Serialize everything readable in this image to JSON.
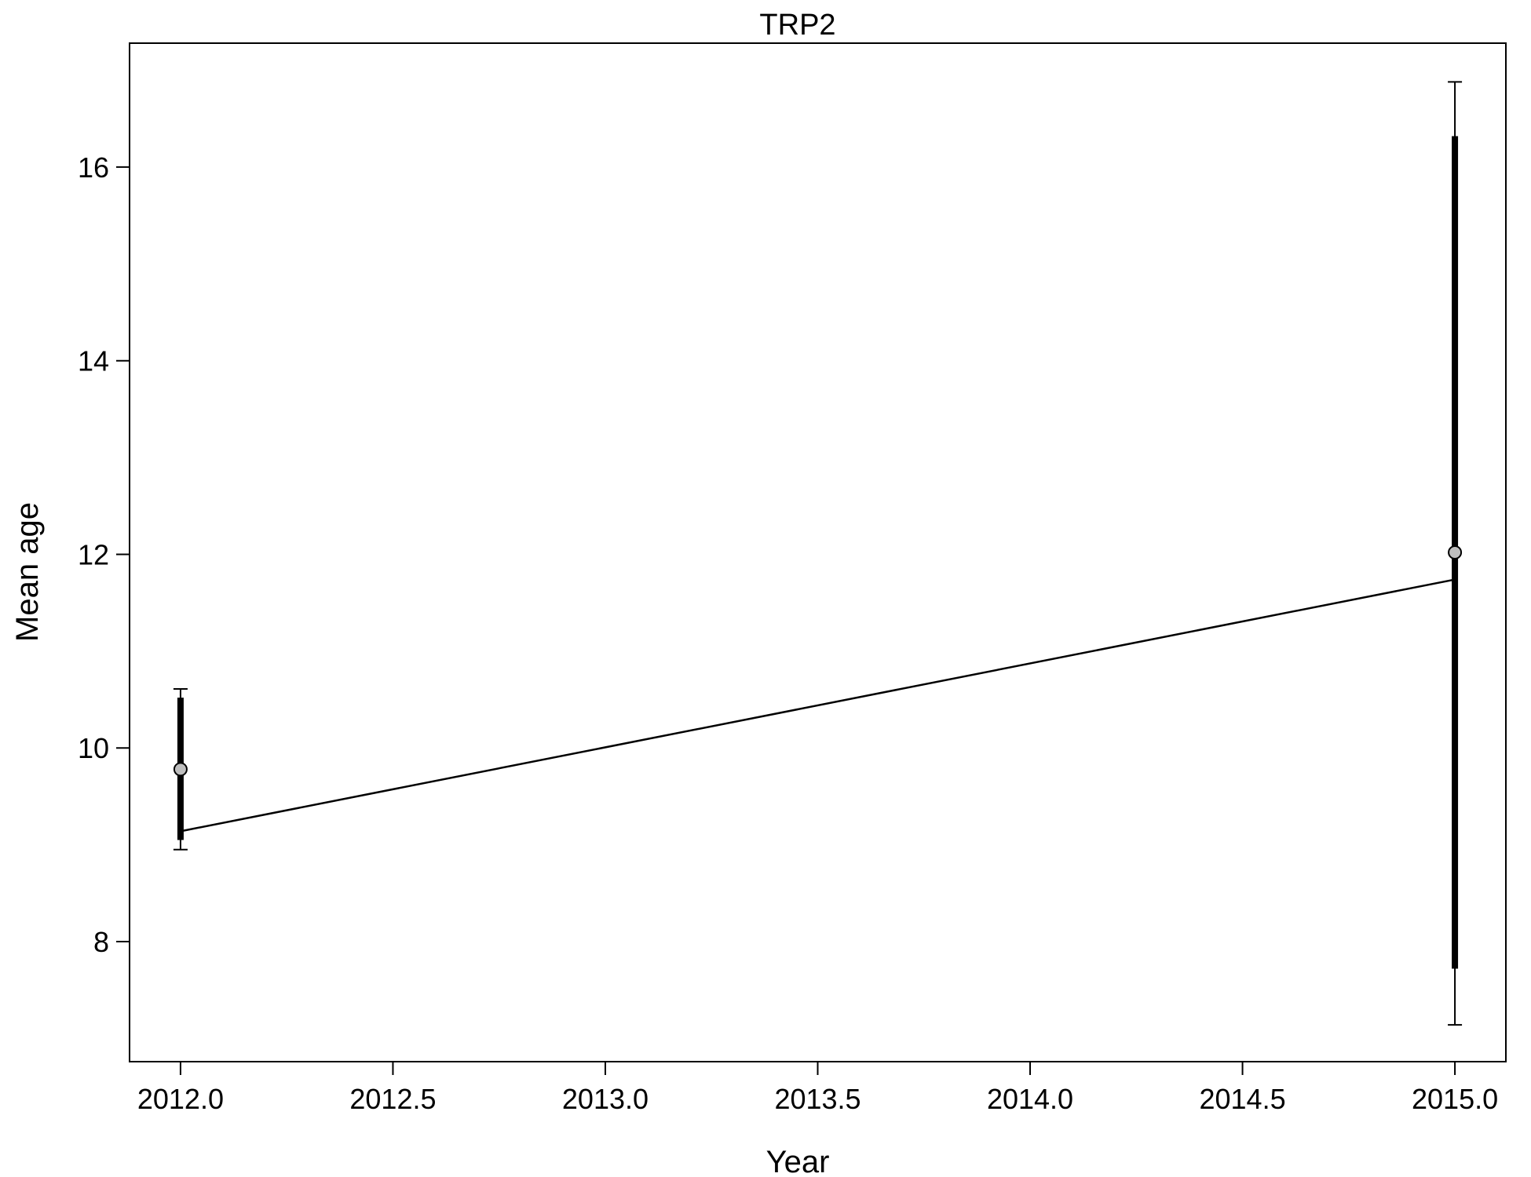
{
  "chart_data": {
    "type": "scatter",
    "title": "TRP2",
    "xlabel": "Year",
    "ylabel": "Mean age",
    "xlim": [
      2011.88,
      2015.12
    ],
    "ylim": [
      6.76,
      17.28
    ],
    "x_ticks": [
      2012.0,
      2012.5,
      2013.0,
      2013.5,
      2014.0,
      2014.5,
      2015.0
    ],
    "x_tick_labels": [
      "2012.0",
      "2012.5",
      "2013.0",
      "2013.5",
      "2014.0",
      "2014.5",
      "2015.0"
    ],
    "y_ticks": [
      8,
      10,
      12,
      14,
      16
    ],
    "y_tick_labels": [
      "8",
      "10",
      "12",
      "14",
      "16"
    ],
    "grid": false,
    "legend": "none",
    "series": [
      {
        "points": [
          {
            "x": 2012,
            "y": 9.78,
            "inner_low": 9.05,
            "inner_high": 10.52,
            "outer_low": 8.95,
            "outer_high": 10.61
          },
          {
            "x": 2015,
            "y": 12.02,
            "inner_low": 7.72,
            "inner_high": 16.32,
            "outer_low": 7.14,
            "outer_high": 16.88
          }
        ],
        "point_color": "#bebebe"
      },
      {
        "x": [
          2012,
          2015
        ],
        "y": [
          9.14,
          11.74
        ],
        "color": "#000000"
      }
    ]
  }
}
